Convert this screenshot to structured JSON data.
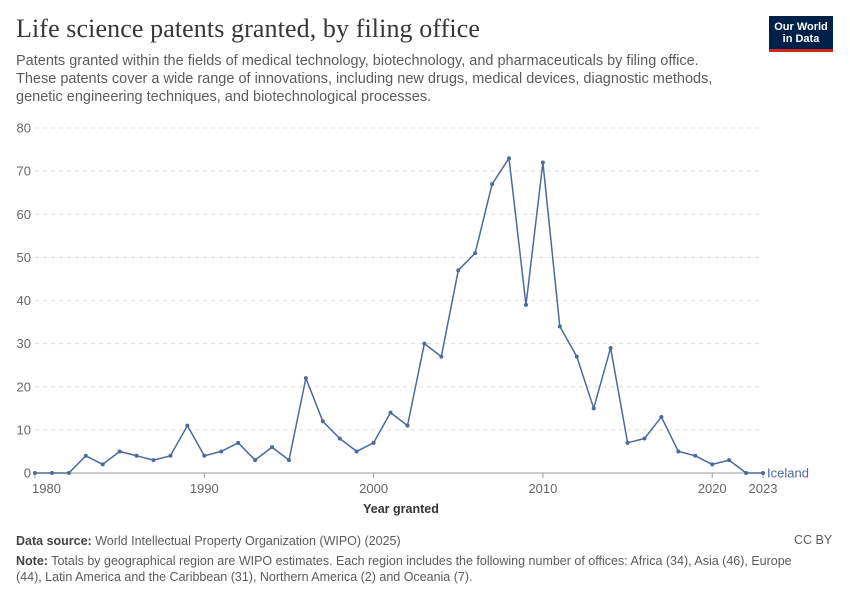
{
  "header": {
    "title": "Life science patents granted, by filing office",
    "subtitle": "Patents granted within the fields of medical technology, biotechnology, and pharmaceuticals by filing office. These patents cover a wide range of innovations, including new drugs, medical devices, diagnostic methods, genetic engineering techniques, and biotechnological processes."
  },
  "logo": {
    "line1": "Our World",
    "line2": "in Data"
  },
  "footer": {
    "source_label": "Data source:",
    "source_text": "World Intellectual Property Organization (WIPO) (2025)",
    "license": "CC BY",
    "note_label": "Note:",
    "note_text": "Totals by geographical region are WIPO estimates. Each region includes the following number of offices: Africa (34), Asia (46), Europe (44), Latin America and the Caribbean (31), Northern America (2) and Oceania (7)."
  },
  "colors": {
    "series": "#4c6a9c",
    "grid": "#dddddd",
    "axis": "#999999"
  },
  "chart_data": {
    "type": "line",
    "title": "Life science patents granted, by filing office",
    "xlabel": "Year granted",
    "ylabel": "",
    "xlim": [
      1980,
      2023
    ],
    "ylim": [
      0,
      80
    ],
    "x_ticks": [
      1980,
      1990,
      2000,
      2010,
      2020,
      2023
    ],
    "y_ticks": [
      0,
      10,
      20,
      30,
      40,
      50,
      60,
      70,
      80
    ],
    "grid": true,
    "series": [
      {
        "name": "Iceland",
        "x": [
          1980,
          1981,
          1982,
          1983,
          1984,
          1985,
          1986,
          1987,
          1988,
          1989,
          1990,
          1991,
          1992,
          1993,
          1994,
          1995,
          1996,
          1997,
          1998,
          1999,
          2000,
          2001,
          2002,
          2003,
          2004,
          2005,
          2006,
          2007,
          2008,
          2009,
          2010,
          2011,
          2012,
          2013,
          2014,
          2015,
          2016,
          2017,
          2018,
          2019,
          2020,
          2021,
          2022,
          2023
        ],
        "values": [
          0,
          0,
          0,
          4,
          2,
          5,
          4,
          3,
          4,
          11,
          4,
          5,
          7,
          3,
          6,
          3,
          22,
          12,
          8,
          5,
          7,
          14,
          11,
          30,
          27,
          47,
          51,
          67,
          73,
          39,
          72,
          34,
          27,
          15,
          29,
          7,
          8,
          13,
          5,
          4,
          2,
          3,
          0,
          0
        ]
      }
    ]
  }
}
